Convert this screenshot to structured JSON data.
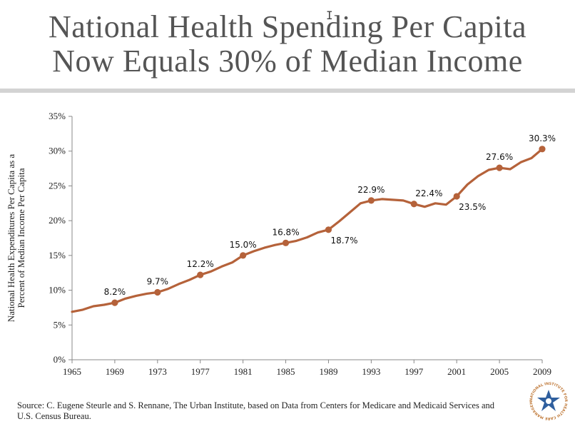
{
  "title": {
    "line1": "National Health Spending Per Capita",
    "line2": "Now Equals 30% of Median Income"
  },
  "cursor_glyph": "I",
  "source": "Source:  C. Eugene Steurle and S. Rennane, The Urban Institute, based on Data from Centers for Medicare and Medicaid Services and U.S. Census Bureau.",
  "logo": {
    "name": "national-institute-health-care-management-logo",
    "text": "NATIONAL INSTITUTE FOR HEALTH CARE MANAGEMENT"
  },
  "colors": {
    "line": "#b5623a",
    "axis": "#888888",
    "title": "#555555"
  },
  "chart_data": {
    "type": "line",
    "title": "",
    "ylabel": "National Health Expenditures Per Capita as a Percent of Median Income Per Capita",
    "xlabel": "",
    "xlim": [
      1965,
      2009
    ],
    "ylim": [
      0,
      35
    ],
    "grid": false,
    "xticks": [
      "1965",
      "1969",
      "1973",
      "1977",
      "1981",
      "1985",
      "1989",
      "1993",
      "1997",
      "2001",
      "2005",
      "2009"
    ],
    "yticks": [
      "0%",
      "5%",
      "10%",
      "15%",
      "20%",
      "25%",
      "30%",
      "35%"
    ],
    "series": [
      {
        "x": [
          1965,
          1966,
          1967,
          1968,
          1969,
          1970,
          1971,
          1972,
          1973,
          1974,
          1975,
          1976,
          1977,
          1978,
          1979,
          1980,
          1981,
          1982,
          1983,
          1984,
          1985,
          1986,
          1987,
          1988,
          1989,
          1990,
          1991,
          1992,
          1993,
          1994,
          1995,
          1996,
          1997,
          1998,
          1999,
          2000,
          2001,
          2002,
          2003,
          2004,
          2005,
          2006,
          2007,
          2008,
          2009
        ],
        "y": [
          6.9,
          7.2,
          7.7,
          7.9,
          8.2,
          8.8,
          9.2,
          9.5,
          9.7,
          10.2,
          10.9,
          11.5,
          12.2,
          12.7,
          13.4,
          14.0,
          15.0,
          15.6,
          16.1,
          16.5,
          16.8,
          17.1,
          17.6,
          18.3,
          18.7,
          19.9,
          21.2,
          22.5,
          22.9,
          23.1,
          23.0,
          22.9,
          22.4,
          22.0,
          22.5,
          22.3,
          23.5,
          25.2,
          26.4,
          27.3,
          27.6,
          27.4,
          28.4,
          29.0,
          30.3
        ]
      }
    ],
    "markers": [
      {
        "x": 1969,
        "y": 8.2,
        "label": "8.2%",
        "pos": "above"
      },
      {
        "x": 1973,
        "y": 9.7,
        "label": "9.7%",
        "pos": "above"
      },
      {
        "x": 1977,
        "y": 12.2,
        "label": "12.2%",
        "pos": "above"
      },
      {
        "x": 1981,
        "y": 15.0,
        "label": "15.0%",
        "pos": "above"
      },
      {
        "x": 1985,
        "y": 16.8,
        "label": "16.8%",
        "pos": "above"
      },
      {
        "x": 1989,
        "y": 18.7,
        "label": "18.7%",
        "pos": "below-right"
      },
      {
        "x": 1993,
        "y": 22.9,
        "label": "22.9%",
        "pos": "above"
      },
      {
        "x": 1997,
        "y": 22.4,
        "label": "22.4%",
        "pos": "above-right"
      },
      {
        "x": 2001,
        "y": 23.5,
        "label": "23.5%",
        "pos": "below-right"
      },
      {
        "x": 2005,
        "y": 27.6,
        "label": "27.6%",
        "pos": "above"
      },
      {
        "x": 2009,
        "y": 30.3,
        "label": "30.3%",
        "pos": "above"
      }
    ]
  }
}
